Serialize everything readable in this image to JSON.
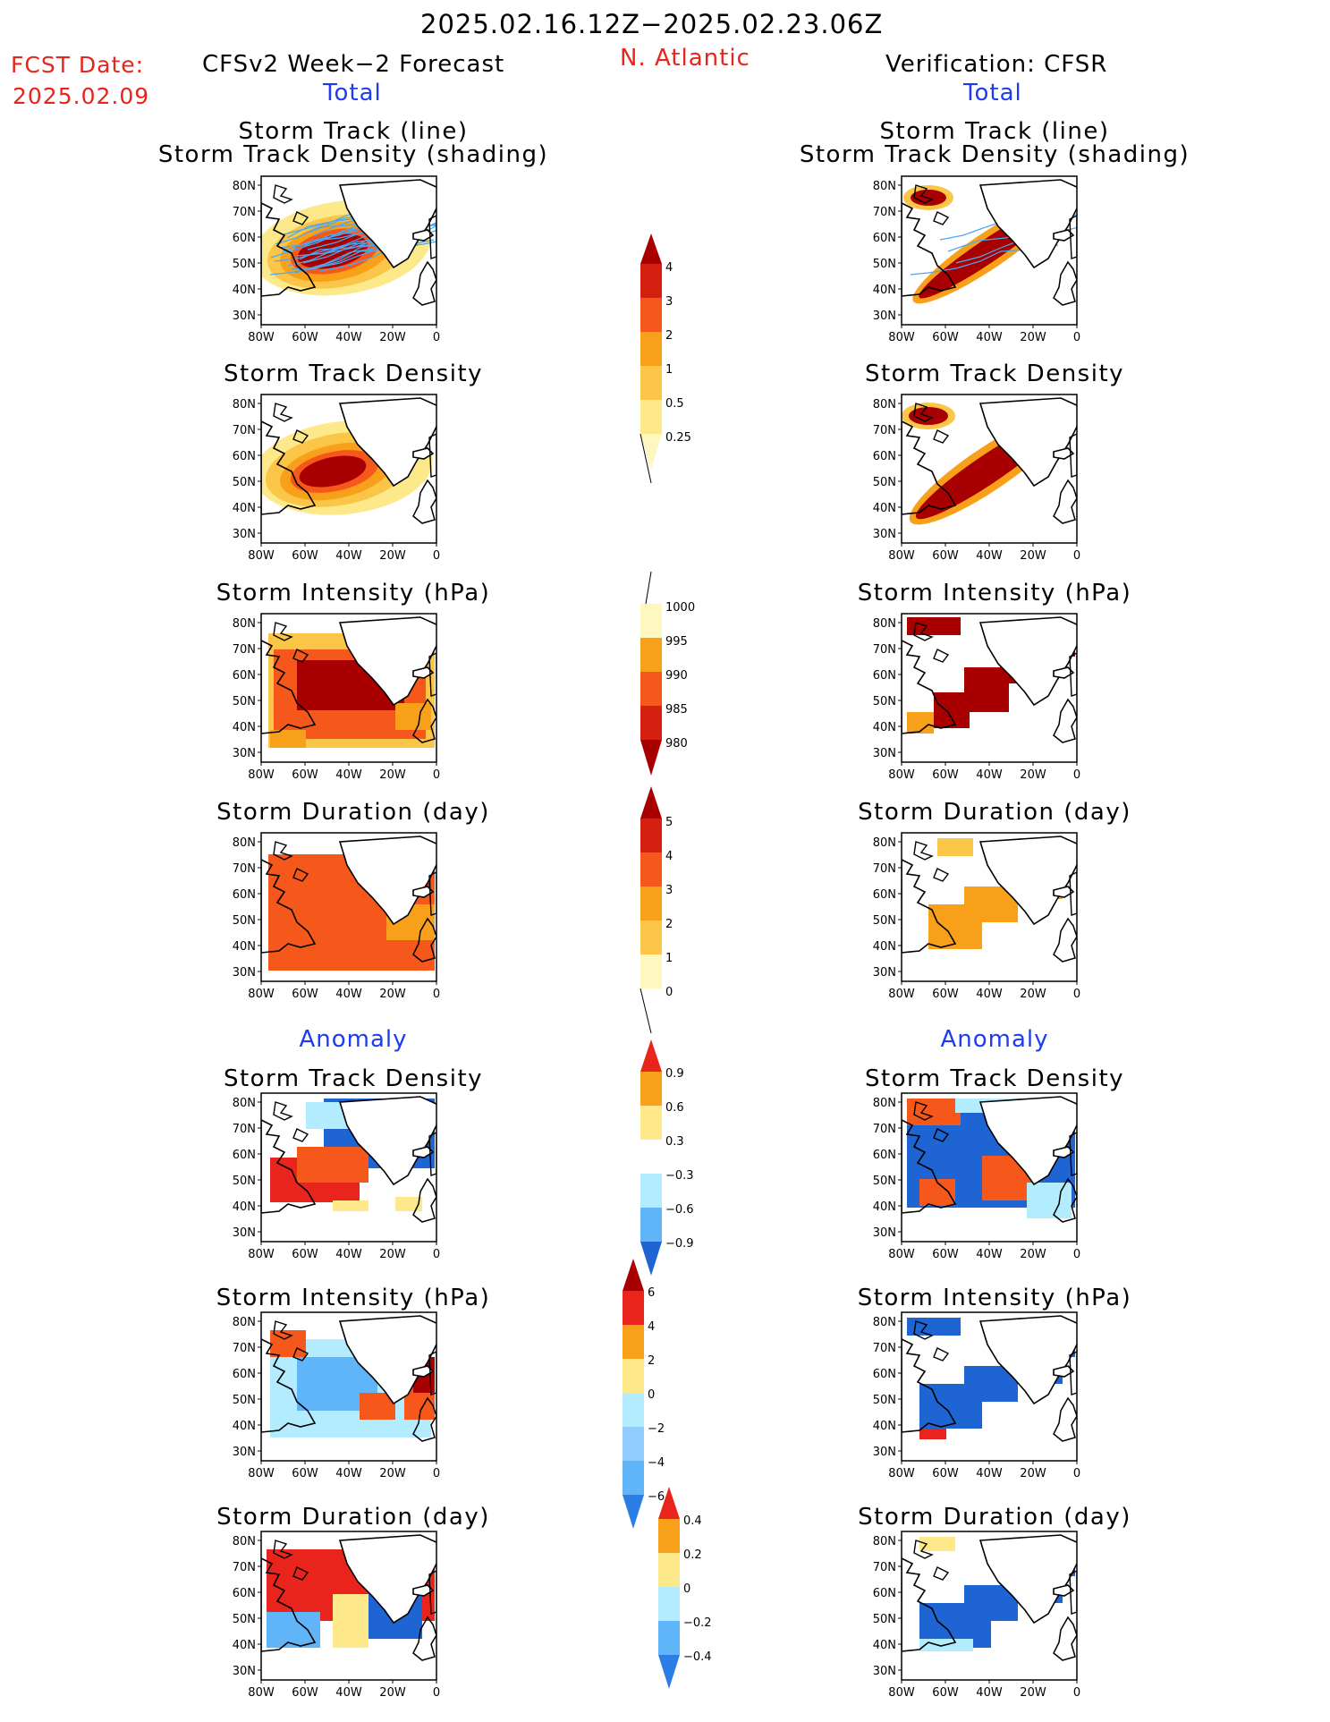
{
  "header": {
    "period": "2025.02.16.12Z−2025.02.23.06Z",
    "fcst_label": "FCST Date:",
    "fcst_date": "2025.02.09",
    "left_title": "CFSv2 Week−2 Forecast",
    "region": "N. Atlantic",
    "right_title": "Verification: CFSR",
    "left_total": "Total",
    "right_total": "Total"
  },
  "sections": {
    "anomaly_left": "Anomaly",
    "anomaly_right": "Anomaly"
  },
  "axes": {
    "lat_labels": [
      "80N",
      "70N",
      "60N",
      "50N",
      "40N",
      "30N"
    ],
    "lon_labels": [
      "80W",
      "60W",
      "40W",
      "20W",
      "0"
    ]
  },
  "panels": {
    "track_title_1": "Storm Track (line)",
    "track_title_2": "Storm Track Density (shading)",
    "density": "Storm Track Density",
    "intensity": "Storm Intensity (hPa)",
    "duration": "Storm Duration (day)"
  },
  "colorbars": {
    "density": [
      "4",
      "3",
      "2",
      "1",
      "0.5",
      "0.25"
    ],
    "intensity": [
      "1000",
      "995",
      "990",
      "985",
      "980"
    ],
    "duration": [
      "5",
      "4",
      "3",
      "2",
      "1",
      "0"
    ],
    "anom_density": [
      "0.9",
      "0.6",
      "0.3",
      "−0.3",
      "−0.6",
      "−0.9"
    ],
    "anom_intensity": [
      "6",
      "4",
      "2",
      "0",
      "−2",
      "−4",
      "−6"
    ],
    "anom_duration": [
      "0.4",
      "0.2",
      "0",
      "−0.2",
      "−0.4"
    ]
  },
  "colors": {
    "dark_red": "#a80000",
    "red": "#e8241c",
    "orange_red": "#f5581a",
    "orange": "#f9a01b",
    "light_orange": "#fbc548",
    "yellow": "#fde88a",
    "pale_yellow": "#fff7c0",
    "light_blue": "#b4ecff",
    "mid_blue": "#60b4f8",
    "blue": "#1e64d2",
    "track_line": "#4aa8f0",
    "title_blue": "#1d3cf2",
    "title_red": "#e8241c"
  }
}
